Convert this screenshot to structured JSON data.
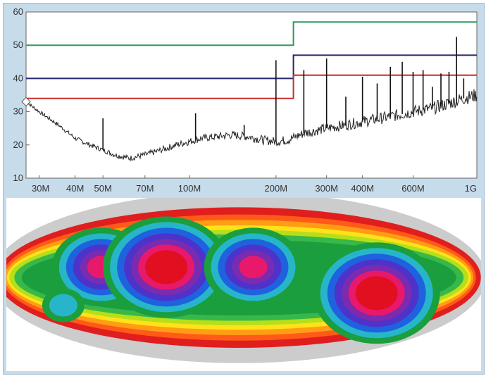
{
  "chart_data": [
    {
      "type": "line",
      "title": "",
      "xlabel": "",
      "ylabel": "",
      "x_scale": "log",
      "xlim": [
        27,
        1000
      ],
      "ylim": [
        10,
        60
      ],
      "grid": false,
      "y_ticks": [
        10,
        20,
        30,
        40,
        50,
        60
      ],
      "x_ticks": [
        {
          "label": "30M",
          "value": 30
        },
        {
          "label": "40M",
          "value": 40
        },
        {
          "label": "50M",
          "value": 50
        },
        {
          "label": "70M",
          "value": 70
        },
        {
          "label": "100M",
          "value": 100
        },
        {
          "label": "200M",
          "value": 200
        },
        {
          "label": "300M",
          "value": 300
        },
        {
          "label": "400M",
          "value": 400
        },
        {
          "label": "600M",
          "value": 600
        },
        {
          "label": "1G",
          "value": 1000
        }
      ],
      "colors": {
        "green": "#2e9a5a",
        "navy": "#27266e",
        "red": "#cc2b2b",
        "trace": "#222222"
      },
      "series": [
        {
          "color": "green",
          "points": [
            [
              27,
              50
            ],
            [
              230,
              50
            ],
            [
              230,
              57
            ],
            [
              1000,
              57
            ]
          ]
        },
        {
          "color": "navy",
          "points": [
            [
              27,
              40
            ],
            [
              230,
              40
            ],
            [
              230,
              47
            ],
            [
              1000,
              47
            ]
          ]
        },
        {
          "color": "red",
          "points": [
            [
              27,
              34
            ],
            [
              230,
              34
            ],
            [
              230,
              41
            ],
            [
              1000,
              41
            ]
          ]
        },
        {
          "color": "trace",
          "noise": true,
          "points": [
            [
              27,
              33
            ],
            [
              30,
              30
            ],
            [
              35,
              26
            ],
            [
              40,
              22
            ],
            [
              45,
              20
            ],
            [
              50,
              18.5
            ],
            [
              55,
              17
            ],
            [
              62,
              16
            ],
            [
              70,
              17
            ],
            [
              80,
              18.5
            ],
            [
              90,
              20
            ],
            [
              100,
              21
            ],
            [
              110,
              22
            ],
            [
              125,
              22.5
            ],
            [
              140,
              23
            ],
            [
              160,
              22.5
            ],
            [
              180,
              21.5
            ],
            [
              200,
              21
            ],
            [
              220,
              21.5
            ],
            [
              250,
              23.5
            ],
            [
              300,
              25
            ],
            [
              350,
              26
            ],
            [
              400,
              27
            ],
            [
              500,
              28.5
            ],
            [
              600,
              30
            ],
            [
              700,
              31
            ],
            [
              800,
              32.5
            ],
            [
              900,
              34
            ],
            [
              1000,
              35
            ]
          ]
        }
      ],
      "spikes": [
        {
          "x": 50,
          "y": 28
        },
        {
          "x": 105,
          "y": 29.5
        },
        {
          "x": 155,
          "y": 26
        },
        {
          "x": 200,
          "y": 45.5
        },
        {
          "x": 250,
          "y": 42.5
        },
        {
          "x": 300,
          "y": 46
        },
        {
          "x": 350,
          "y": 34.5
        },
        {
          "x": 400,
          "y": 40.5
        },
        {
          "x": 450,
          "y": 38.5
        },
        {
          "x": 500,
          "y": 43.5
        },
        {
          "x": 550,
          "y": 45
        },
        {
          "x": 600,
          "y": 42
        },
        {
          "x": 650,
          "y": 42.5
        },
        {
          "x": 700,
          "y": 37.5
        },
        {
          "x": 750,
          "y": 41.5
        },
        {
          "x": 800,
          "y": 42
        },
        {
          "x": 850,
          "y": 52.5
        },
        {
          "x": 900,
          "y": 40
        }
      ],
      "marker_y": 33
    },
    {
      "type": "heatmap",
      "colors": [
        "#ffffff",
        "#cccccc",
        "#e01e1e",
        "#ff5a18",
        "#ff9d14",
        "#ffe21a",
        "#b6df1a",
        "#39b84a",
        "#1a9e3e",
        "#27b6c9",
        "#1f62e0",
        "#4d33c9",
        "#7a2bb0",
        "#e8196b",
        "#e10f1f"
      ],
      "hotspots": [
        {
          "x": 0.2,
          "y": 0.4,
          "level": 12
        },
        {
          "x": 0.337,
          "y": 0.4,
          "level": 14
        },
        {
          "x": 0.52,
          "y": 0.4,
          "level": 12
        },
        {
          "x": 0.78,
          "y": 0.55,
          "level": 14
        },
        {
          "x": 0.12,
          "y": 0.62,
          "level": 8
        }
      ]
    }
  ]
}
